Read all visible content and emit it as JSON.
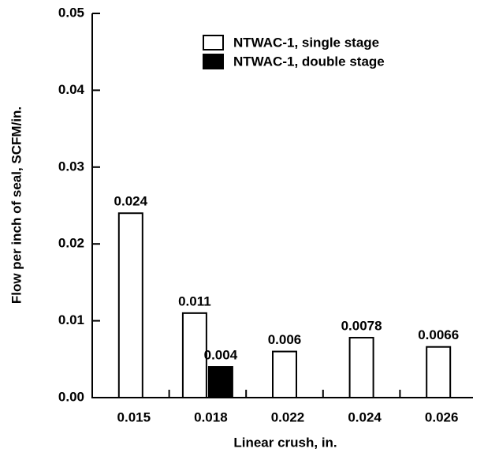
{
  "chart_data": {
    "type": "bar",
    "x_label": "Linear crush, in.",
    "y_label": "Flow per inch of seal, SCFM/in.",
    "categories": [
      "0.015",
      "0.018",
      "0.022",
      "0.024",
      "0.026"
    ],
    "series": [
      {
        "name": "NTWAC-1, single stage",
        "color": "#ffffff",
        "values": [
          0.024,
          0.011,
          0.006,
          0.0078,
          0.0066
        ]
      },
      {
        "name": "NTWAC-1, double stage",
        "color": "#000000",
        "values": [
          null,
          0.004,
          null,
          null,
          null
        ]
      }
    ],
    "ylim": [
      0,
      0.05
    ],
    "yticks": [
      {
        "value": 0,
        "label": "0.00"
      },
      0.01,
      0.02,
      0.03,
      0.04,
      0.05
    ],
    "grid": false,
    "legend": "upper right"
  }
}
